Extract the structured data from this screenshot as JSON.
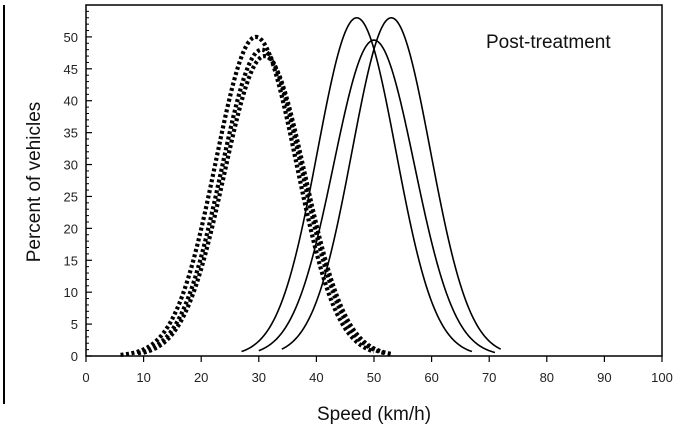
{
  "chart_data": {
    "type": "line",
    "title": "",
    "annotation": "Post-treatment",
    "xlabel": "Speed (km/h)",
    "ylabel": "Percent of vehicles",
    "xlim": [
      0,
      100
    ],
    "ylim": [
      0,
      55
    ],
    "xticks": [
      0,
      10,
      20,
      30,
      40,
      50,
      60,
      70,
      80,
      90,
      100
    ],
    "yticks": [
      0,
      5,
      10,
      15,
      20,
      25,
      30,
      35,
      40,
      45,
      50
    ],
    "grid": false,
    "legend": "none",
    "series": [
      {
        "style": "dotted",
        "color": "#000000",
        "mean": 29.5,
        "peak": 50,
        "sd": 7.0,
        "xrange": [
          6,
          50
        ]
      },
      {
        "style": "dotted",
        "color": "#000000",
        "mean": 30.5,
        "peak": 48,
        "sd": 7.0,
        "xrange": [
          9,
          52
        ]
      },
      {
        "style": "dotted",
        "color": "#000000",
        "mean": 31.0,
        "peak": 47,
        "sd": 7.0,
        "xrange": [
          10,
          53
        ]
      },
      {
        "style": "solid",
        "color": "#000000",
        "mean": 47,
        "peak": 53,
        "sd": 6.8,
        "xrange": [
          27,
          67
        ]
      },
      {
        "style": "solid",
        "color": "#000000",
        "mean": 50,
        "peak": 49.5,
        "sd": 7.0,
        "xrange": [
          30,
          71
        ]
      },
      {
        "style": "solid",
        "color": "#000000",
        "mean": 53,
        "peak": 53,
        "sd": 6.8,
        "xrange": [
          34,
          72
        ]
      }
    ]
  }
}
